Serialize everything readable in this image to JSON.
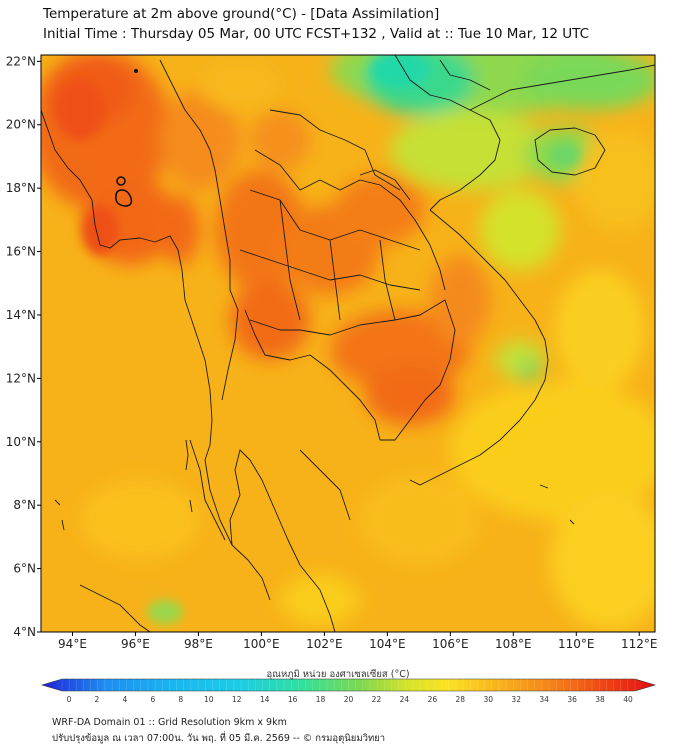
{
  "title": {
    "line1": "Temperature at 2m above ground(°C) - [Data Assimilation]",
    "line2": "Initial Time : Thursday 05 Mar, 00 UTC FCST+132 , Valid at :: Tue 10 Mar, 12 UTC"
  },
  "map": {
    "lon_range": [
      93,
      112.5
    ],
    "lat_range": [
      4,
      22.2
    ],
    "lon_ticks": [
      "94°E",
      "96°E",
      "98°E",
      "100°E",
      "102°E",
      "104°E",
      "106°E",
      "108°E",
      "110°E",
      "112°E"
    ],
    "lat_ticks": [
      "22°N",
      "20°N",
      "18°N",
      "16°N",
      "14°N",
      "12°N",
      "10°N",
      "8°N",
      "6°N",
      "4°N"
    ],
    "background_color": "#f7b219"
  },
  "colorbar": {
    "title": "อุณหภูมิ หน่วย องศาเซลเซียส (°C)",
    "ticks": [
      "0",
      "2",
      "4",
      "6",
      "8",
      "10",
      "12",
      "14",
      "16",
      "18",
      "20",
      "22",
      "24",
      "26",
      "28",
      "30",
      "32",
      "34",
      "36",
      "38",
      "40"
    ],
    "colors": [
      "#2020d8",
      "#1e8cf0",
      "#1ccce6",
      "#2ee0a0",
      "#7ed84e",
      "#d8e428",
      "#fbe320",
      "#f9b51c",
      "#f57d18",
      "#ee3c14",
      "#e40e12"
    ]
  },
  "footer": {
    "line1": "WRF-DA Domain 01 :: Grid Resolution 9km x 9km",
    "line2": "ปรับปรุงข้อมูล ณ เวลา 07:00น. วัน พฤ. ที่ 05 มี.ค. 2569 -- © กรมอุตุนิยมวิทยา"
  }
}
